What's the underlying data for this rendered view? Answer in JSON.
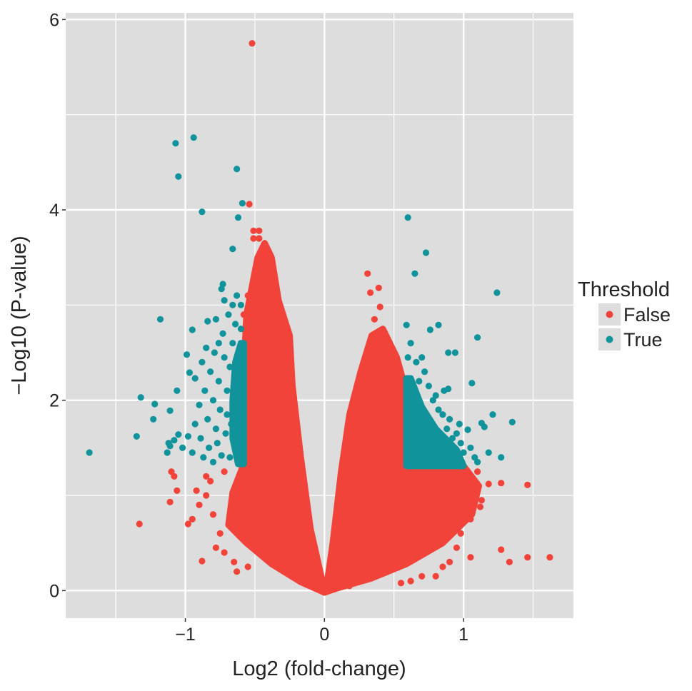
{
  "chart_data": {
    "type": "scatter",
    "title": "",
    "xlabel": "Log2 (fold-change)",
    "ylabel": "−Log10 (P-value)",
    "xlim": [
      -1.86,
      1.79
    ],
    "ylim": [
      -0.29,
      6.07
    ],
    "x_ticks": [
      {
        "value": -1,
        "label": "−1"
      },
      {
        "value": 0,
        "label": "0"
      },
      {
        "value": 1,
        "label": "1"
      }
    ],
    "y_ticks": [
      {
        "value": 0,
        "label": "0"
      },
      {
        "value": 2,
        "label": "2"
      },
      {
        "value": 4,
        "label": "4"
      },
      {
        "value": 6,
        "label": "6"
      }
    ],
    "grid": true,
    "legend": {
      "title": "Threshold",
      "placement": "right"
    },
    "colors": {
      "panel": "#DDDDDD",
      "grid": "#FFFFFF",
      "False": "#F1433A",
      "True": "#10939A"
    },
    "series": [
      {
        "name": "False",
        "dense_regions": [
          [
            [
              0,
              -0.02
            ],
            [
              -0.17,
              0.09
            ],
            [
              -0.38,
              0.28
            ],
            [
              -0.56,
              0.5
            ],
            [
              -0.69,
              0.69
            ],
            [
              -0.66,
              1.03
            ],
            [
              -0.58,
              1.33
            ],
            [
              -0.57,
              2.0
            ],
            [
              -0.57,
              2.6
            ],
            [
              -0.56,
              2.9
            ],
            [
              -0.52,
              3.2
            ],
            [
              -0.48,
              3.5
            ],
            [
              -0.43,
              3.65
            ],
            [
              -0.38,
              3.5
            ],
            [
              -0.33,
              3.05
            ],
            [
              -0.25,
              2.68
            ],
            [
              -0.23,
              2.15
            ],
            [
              -0.17,
              1.4
            ],
            [
              -0.1,
              0.65
            ],
            [
              -0.02,
              0.13
            ]
          ],
          [
            [
              0,
              -0.02
            ],
            [
              0.08,
              0.02
            ],
            [
              0.34,
              0.13
            ],
            [
              0.59,
              0.28
            ],
            [
              0.85,
              0.5
            ],
            [
              1.06,
              0.8
            ],
            [
              1.11,
              1.1
            ],
            [
              1.0,
              1.31
            ],
            [
              0.59,
              1.31
            ],
            [
              0.59,
              2.08
            ],
            [
              0.52,
              2.45
            ],
            [
              0.42,
              2.75
            ],
            [
              0.34,
              2.68
            ],
            [
              0.26,
              2.3
            ],
            [
              0.18,
              1.85
            ],
            [
              0.12,
              1.25
            ],
            [
              0.06,
              0.5
            ],
            [
              0.02,
              0.09
            ]
          ]
        ],
        "points": [
          [
            -0.52,
            5.75
          ],
          [
            -0.54,
            4.06
          ],
          [
            -0.51,
            3.78
          ],
          [
            -0.47,
            3.78
          ],
          [
            -0.51,
            3.7
          ],
          [
            -0.47,
            3.7
          ],
          [
            -0.45,
            3.45
          ],
          [
            -0.49,
            3.35
          ],
          [
            -0.42,
            3.3
          ],
          [
            -0.36,
            3.2
          ],
          [
            -0.55,
            3.1
          ],
          [
            -0.5,
            3.0
          ],
          [
            -0.58,
            2.9
          ],
          [
            -1.33,
            0.7
          ],
          [
            -1.1,
            1.25
          ],
          [
            -1.11,
            0.93
          ],
          [
            -0.88,
            0.31
          ],
          [
            -1.06,
            1.05
          ],
          [
            -1.08,
            1.2
          ],
          [
            -0.98,
            0.7
          ],
          [
            -0.95,
            0.75
          ],
          [
            -0.9,
            0.9
          ],
          [
            -0.85,
            1.0
          ],
          [
            -0.82,
            1.15
          ],
          [
            -0.8,
            0.8
          ],
          [
            -0.75,
            0.6
          ],
          [
            -0.78,
            0.45
          ],
          [
            -0.72,
            0.4
          ],
          [
            -0.65,
            0.3
          ],
          [
            -0.63,
            0.2
          ],
          [
            -0.55,
            0.25
          ],
          [
            -0.72,
            1.25
          ],
          [
            -0.85,
            1.2
          ],
          [
            -0.92,
            1.05
          ],
          [
            0.31,
            3.33
          ],
          [
            0.39,
            3.18
          ],
          [
            0.33,
            3.13
          ],
          [
            0.4,
            2.98
          ],
          [
            0.36,
            2.85
          ],
          [
            0.45,
            2.6
          ],
          [
            0.5,
            2.5
          ],
          [
            1.46,
            1.11
          ],
          [
            1.62,
            0.35
          ],
          [
            1.46,
            0.35
          ],
          [
            1.33,
            0.3
          ],
          [
            1.27,
            0.43
          ],
          [
            1.05,
            0.35
          ],
          [
            1.27,
            1.13
          ],
          [
            1.18,
            1.12
          ],
          [
            1.13,
            0.95
          ],
          [
            1.12,
            0.88
          ],
          [
            1.05,
            0.75
          ],
          [
            1.1,
            1.25
          ],
          [
            1.02,
            1.2
          ],
          [
            0.98,
            0.6
          ],
          [
            0.95,
            0.45
          ],
          [
            0.9,
            0.3
          ],
          [
            0.85,
            0.25
          ],
          [
            0.8,
            0.15
          ],
          [
            0.7,
            0.15
          ],
          [
            0.62,
            0.1
          ],
          [
            0.55,
            0.08
          ],
          [
            0.18,
            0.05
          ]
        ]
      },
      {
        "name": "True",
        "dense_regions": [
          [
            [
              0.59,
              1.31
            ],
            [
              1.0,
              1.31
            ],
            [
              0.95,
              1.48
            ],
            [
              0.8,
              1.7
            ],
            [
              0.7,
              1.93
            ],
            [
              0.62,
              2.23
            ],
            [
              0.59,
              2.23
            ]
          ],
          [
            [
              -0.58,
              1.33
            ],
            [
              -0.62,
              1.33
            ],
            [
              -0.66,
              1.6
            ],
            [
              -0.66,
              2.0
            ],
            [
              -0.64,
              2.4
            ],
            [
              -0.6,
              2.6
            ],
            [
              -0.58,
              2.6
            ]
          ]
        ],
        "points": [
          [
            -1.07,
            4.7
          ],
          [
            -0.94,
            4.76
          ],
          [
            -1.05,
            4.35
          ],
          [
            -0.63,
            4.43
          ],
          [
            -0.59,
            4.07
          ],
          [
            -0.88,
            3.98
          ],
          [
            -0.62,
            3.92
          ],
          [
            -0.66,
            3.59
          ],
          [
            -1.18,
            2.85
          ],
          [
            -1.69,
            1.45
          ],
          [
            -1.32,
            2.03
          ],
          [
            -1.22,
            1.96
          ],
          [
            -1.35,
            1.62
          ],
          [
            -1.23,
            1.8
          ],
          [
            -1.11,
            1.89
          ],
          [
            -1.11,
            1.52
          ],
          [
            -1.05,
            1.64
          ],
          [
            -1.06,
            2.1
          ],
          [
            -0.97,
            2.29
          ],
          [
            -0.93,
            2.23
          ],
          [
            -0.99,
            2.48
          ],
          [
            -0.95,
            2.74
          ],
          [
            -0.84,
            2.83
          ],
          [
            -0.76,
            2.6
          ],
          [
            -0.74,
            3.17
          ],
          [
            -0.73,
            3.22
          ],
          [
            -1.13,
            1.45
          ],
          [
            -1.12,
            1.55
          ],
          [
            -1.08,
            1.58
          ],
          [
            -1.02,
            1.5
          ],
          [
            -0.98,
            1.62
          ],
          [
            -0.95,
            1.45
          ],
          [
            -0.93,
            1.75
          ],
          [
            -0.9,
            1.95
          ],
          [
            -0.89,
            1.6
          ],
          [
            -0.87,
            1.4
          ],
          [
            -0.86,
            2.1
          ],
          [
            -0.84,
            1.8
          ],
          [
            -0.83,
            1.5
          ],
          [
            -0.82,
            2.3
          ],
          [
            -0.8,
            2.0
          ],
          [
            -0.8,
            1.35
          ],
          [
            -0.79,
            2.5
          ],
          [
            -0.78,
            1.7
          ],
          [
            -0.77,
            1.55
          ],
          [
            -0.76,
            2.2
          ],
          [
            -0.75,
            1.9
          ],
          [
            -0.74,
            1.42
          ],
          [
            -0.73,
            2.7
          ],
          [
            -0.72,
            2.45
          ],
          [
            -0.71,
            1.65
          ],
          [
            -0.7,
            2.1
          ],
          [
            -0.7,
            1.85
          ],
          [
            -0.69,
            2.9
          ],
          [
            -0.68,
            1.4
          ],
          [
            -0.68,
            2.35
          ],
          [
            -0.67,
            1.75
          ],
          [
            -0.66,
            3.0
          ],
          [
            -0.66,
            2.6
          ],
          [
            -0.65,
            2.15
          ],
          [
            -0.64,
            1.5
          ],
          [
            -0.64,
            2.8
          ],
          [
            -0.63,
            3.1
          ],
          [
            -0.62,
            1.95
          ],
          [
            -0.61,
            2.5
          ],
          [
            -0.6,
            3.0
          ],
          [
            -0.6,
            1.7
          ],
          [
            -0.6,
            2.75
          ],
          [
            -0.85,
            2.55
          ],
          [
            -0.78,
            2.85
          ],
          [
            -0.72,
            3.05
          ],
          [
            -0.88,
            2.4
          ],
          [
            0.6,
            3.92
          ],
          [
            0.73,
            3.55
          ],
          [
            0.65,
            3.33
          ],
          [
            1.24,
            3.13
          ],
          [
            0.59,
            2.79
          ],
          [
            0.76,
            2.74
          ],
          [
            0.82,
            2.79
          ],
          [
            1.1,
            2.66
          ],
          [
            0.89,
            2.5
          ],
          [
            0.94,
            2.5
          ],
          [
            1.06,
            2.18
          ],
          [
            0.89,
            2.12
          ],
          [
            1.21,
            1.85
          ],
          [
            1.35,
            1.77
          ],
          [
            1.13,
            1.76
          ],
          [
            1.03,
            1.69
          ],
          [
            1.27,
            1.4
          ],
          [
            0.6,
            2.45
          ],
          [
            0.62,
            2.6
          ],
          [
            0.66,
            2.4
          ],
          [
            0.7,
            2.45
          ],
          [
            0.72,
            2.3
          ],
          [
            0.68,
            2.2
          ],
          [
            0.75,
            2.15
          ],
          [
            0.78,
            2.0
          ],
          [
            0.8,
            2.05
          ],
          [
            0.82,
            1.9
          ],
          [
            0.85,
            1.85
          ],
          [
            0.88,
            1.7
          ],
          [
            0.9,
            1.8
          ],
          [
            0.92,
            1.6
          ],
          [
            0.95,
            1.65
          ],
          [
            0.98,
            1.55
          ],
          [
            1.0,
            1.45
          ],
          [
            1.05,
            1.5
          ],
          [
            1.08,
            1.4
          ],
          [
            1.1,
            1.35
          ],
          [
            1.15,
            1.72
          ],
          [
            1.18,
            1.45
          ],
          [
            0.97,
            1.75
          ],
          [
            0.86,
            2.1
          ]
        ]
      }
    ]
  }
}
